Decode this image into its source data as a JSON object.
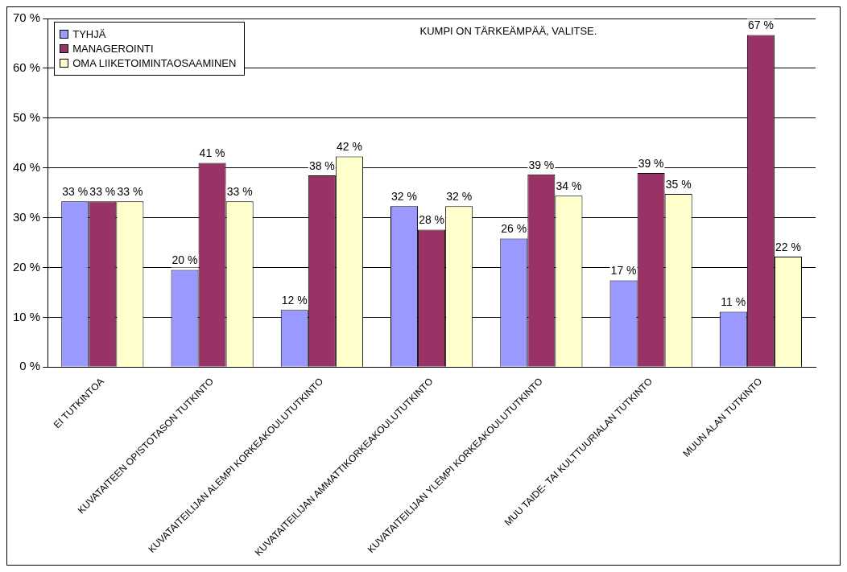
{
  "chart_data": {
    "type": "bar",
    "title": "KUMPI ON TÄRKEÄMPÄÄ, VALITSE.",
    "categories": [
      "EI TUTKINTOA",
      "KUVATAITEEN OPISTOTASON TUTKINTO",
      "KUVATAITEILIJAN ALEMPI KORKEAKOULUTUTKINTO",
      "KUVATAITEILIJAN AMMATTIKORKEAKOULUTUTKINTO",
      "KUVATAITEILIJAN YLEMPI KORKEAKOULUTUTKINTO",
      "MUU TAIDE- TAI KULTTUURIALAN TUTKINTO",
      "MUUN ALAN TUTKINTO"
    ],
    "series": [
      {
        "name": "TYHJÄ",
        "color": "#9999ff",
        "values": [
          33.3,
          19.5,
          11.5,
          32.3,
          25.8,
          17.4,
          11.1
        ],
        "value_labels": [
          "33 %",
          "20 %",
          "12 %",
          "32 %",
          "26 %",
          "17 %",
          "11 %"
        ]
      },
      {
        "name": "MANAGEROINTI",
        "color": "#993366",
        "values": [
          33.3,
          41,
          38.5,
          27.6,
          38.7,
          39,
          66.7
        ],
        "value_labels": [
          "33 %",
          "41 %",
          "38 %",
          "28 %",
          "39 %",
          "39 %",
          "67 %"
        ]
      },
      {
        "name": "OMA LIIKETOIMINTAOSAAMINEN",
        "color": "#ffffcc",
        "values": [
          33.3,
          33.3,
          42.3,
          32.3,
          34.4,
          34.8,
          22.2
        ],
        "value_labels": [
          "33 %",
          "33 %",
          "42 %",
          "32 %",
          "34 %",
          "35 %",
          "22 %"
        ]
      }
    ],
    "ylim": [
      0,
      70
    ],
    "yticks": [
      {
        "value": 0,
        "label": "0 %"
      },
      {
        "value": 10,
        "label": "10 %"
      },
      {
        "value": 20,
        "label": "20 %"
      },
      {
        "value": 30,
        "label": "30 %"
      },
      {
        "value": 40,
        "label": "40 %"
      },
      {
        "value": 50,
        "label": "50 %"
      },
      {
        "value": 60,
        "label": "60 %"
      },
      {
        "value": 70,
        "label": "70 %"
      }
    ],
    "grid": "y",
    "legend": "top left"
  }
}
